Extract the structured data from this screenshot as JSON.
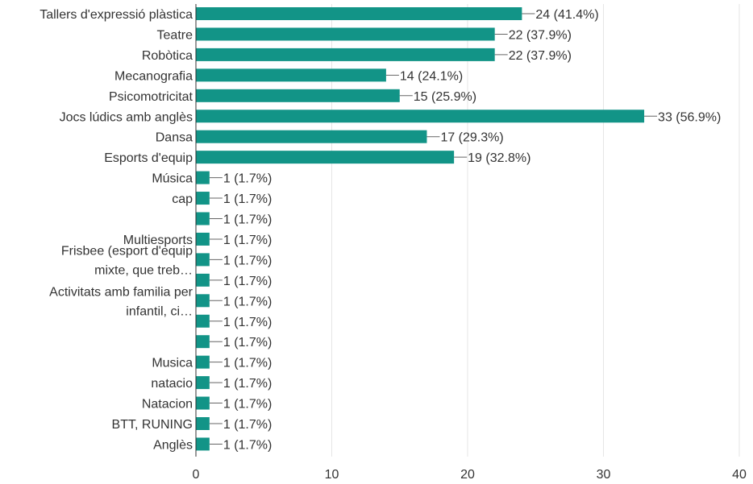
{
  "chart_data": {
    "type": "bar",
    "orientation": "horizontal",
    "categories": [
      "Tallers d'expressió plàstica",
      "Teatre",
      "Robòtica",
      "Mecanografia",
      "Psicomotricitat",
      "Jocs lúdics amb anglès",
      "Dansa",
      "Esports d'equip",
      "Música",
      "cap",
      "",
      "Multiesports",
      "Frisbee (esport d'equip mixte, que treb…",
      "",
      "Activitats amb familia per infantil, ci…",
      "",
      "",
      "Musica",
      "natacio",
      "Natacion",
      "BTT, RUNING",
      "Anglès"
    ],
    "values": [
      24,
      22,
      22,
      14,
      15,
      33,
      17,
      19,
      1,
      1,
      1,
      1,
      1,
      1,
      1,
      1,
      1,
      1,
      1,
      1,
      1,
      1
    ],
    "data_labels": [
      "24 (41.4%)",
      "22 (37.9%)",
      "22 (37.9%)",
      "14 (24.1%)",
      "15 (25.9%)",
      "33 (56.9%)",
      "17 (29.3%)",
      "19 (32.8%)",
      "1 (1.7%)",
      "1 (1.7%)",
      "1 (1.7%)",
      "1 (1.7%)",
      "1 (1.7%)",
      "1 (1.7%)",
      "1 (1.7%)",
      "1 (1.7%)",
      "1 (1.7%)",
      "1 (1.7%)",
      "1 (1.7%)",
      "1 (1.7%)",
      "1 (1.7%)",
      "1 (1.7%)"
    ],
    "xlim": [
      0,
      40
    ],
    "x_ticks": [
      0,
      10,
      20,
      30,
      40
    ],
    "grid": true,
    "bar_color": "#129487",
    "grid_color": "#e6e6e6",
    "axis_color": "#333333"
  }
}
